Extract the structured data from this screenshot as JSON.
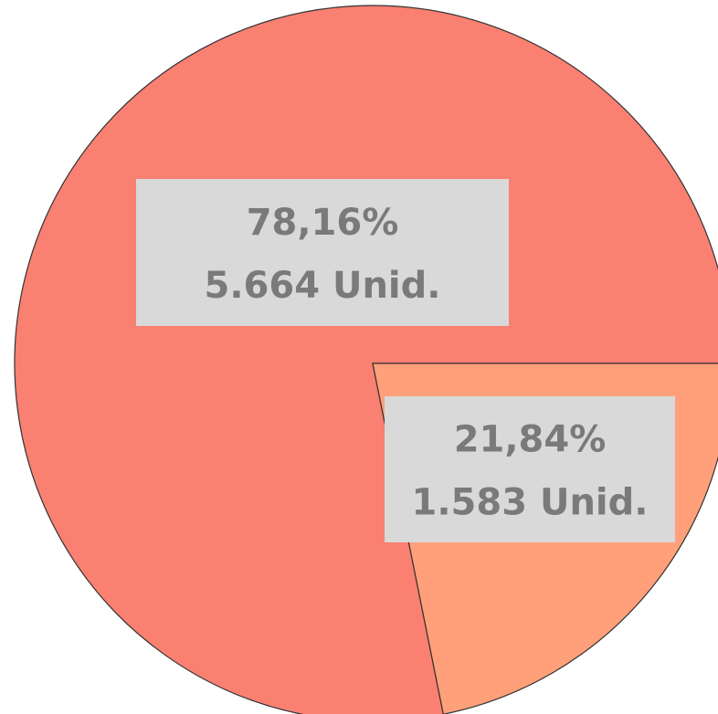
{
  "chart_data": {
    "type": "pie",
    "categories": [
      null,
      null
    ],
    "values": [
      78.16,
      21.84
    ],
    "value_labels": [
      "78,16%",
      "21,84%"
    ],
    "counts": [
      5664,
      1583
    ],
    "count_labels": [
      "5.664 Unid.",
      "1.583 Unid."
    ],
    "colors": [
      "#fa8072",
      "#ffa07a"
    ]
  }
}
